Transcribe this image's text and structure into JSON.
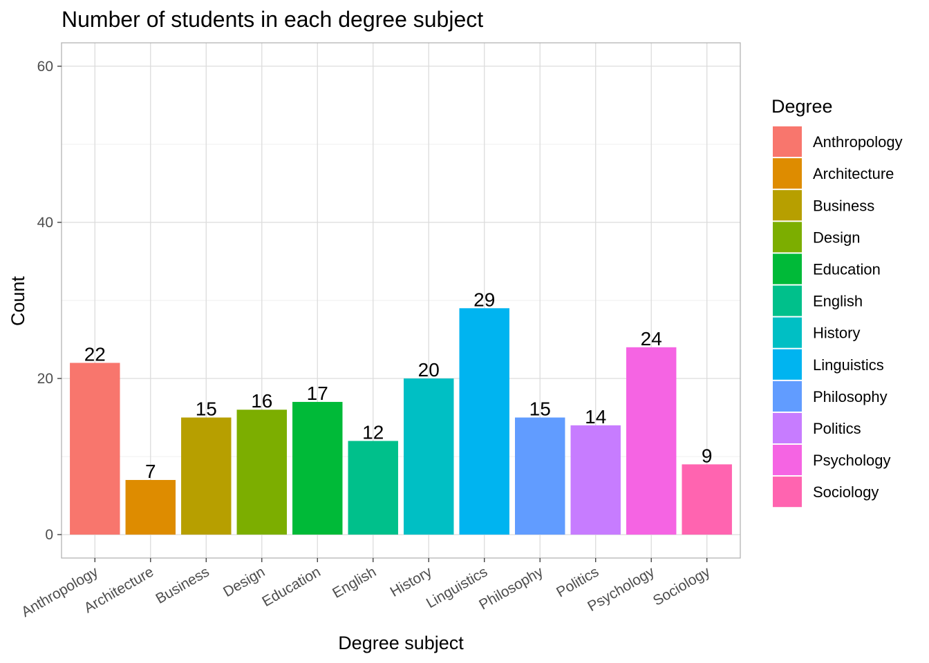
{
  "chart_data": {
    "type": "bar",
    "title": "Number of students in each degree subject",
    "xlabel": "Degree subject",
    "ylabel": "Count",
    "categories": [
      "Anthropology",
      "Architecture",
      "Business",
      "Design",
      "Education",
      "English",
      "History",
      "Linguistics",
      "Philosophy",
      "Politics",
      "Psychology",
      "Sociology"
    ],
    "values": [
      22,
      7,
      15,
      16,
      17,
      12,
      20,
      29,
      15,
      14,
      24,
      9
    ],
    "colors": [
      "#F8766D",
      "#DE8C00",
      "#B79F00",
      "#7CAE00",
      "#00BA38",
      "#00C08B",
      "#00BFC4",
      "#00B4F0",
      "#619CFF",
      "#C77CFF",
      "#F564E3",
      "#FF64B0"
    ],
    "ylim": [
      -3,
      63
    ],
    "yticks": [
      0,
      20,
      40,
      60
    ],
    "grid": true,
    "legend": {
      "title": "Degree",
      "position": "right",
      "entries": [
        "Anthropology",
        "Architecture",
        "Business",
        "Design",
        "Education",
        "English",
        "History",
        "Linguistics",
        "Philosophy",
        "Politics",
        "Psychology",
        "Sociology"
      ]
    }
  }
}
